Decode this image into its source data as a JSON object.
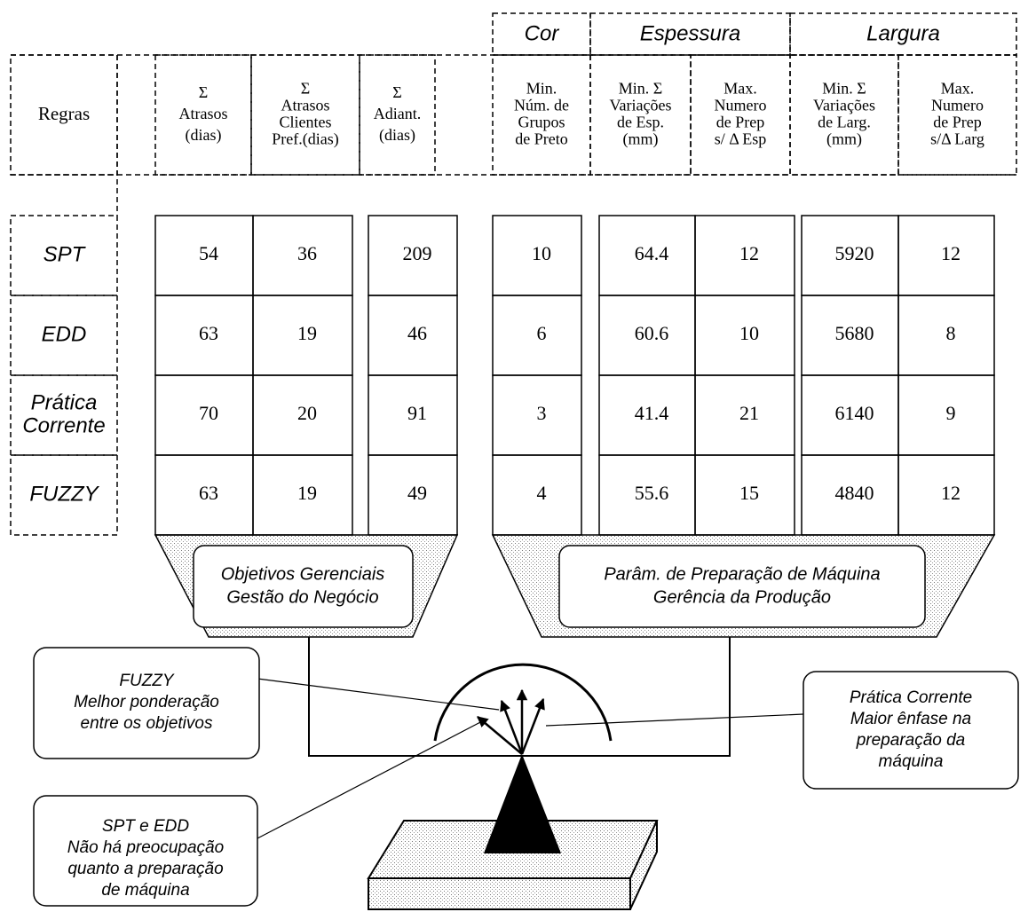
{
  "column_groups": [
    {
      "label": "Cor"
    },
    {
      "label": "Espessura"
    },
    {
      "label": "Largura"
    }
  ],
  "columns": [
    {
      "lines": [
        "Regras"
      ]
    },
    {
      "lines": [
        "Σ",
        "Atrasos",
        "(dias)"
      ]
    },
    {
      "lines": [
        "Σ",
        "Atrasos",
        "Clientes",
        "Pref.(dias)"
      ]
    },
    {
      "lines": [
        "Σ",
        "Adiant.",
        "(dias)"
      ]
    },
    {
      "lines": [
        "Min.",
        "Núm. de",
        "Grupos",
        "de Preto"
      ]
    },
    {
      "lines": [
        "Min. Σ",
        "Variações",
        "de Esp.",
        "(mm)"
      ]
    },
    {
      "lines": [
        "Max.",
        "Numero",
        "de Prep",
        "s/ Δ Esp"
      ]
    },
    {
      "lines": [
        "Min. Σ",
        "Variações",
        "de Larg.",
        "(mm)"
      ]
    },
    {
      "lines": [
        "Max.",
        "Numero",
        "de Prep",
        "s/Δ Larg"
      ]
    }
  ],
  "rows": [
    {
      "rule": [
        "SPT"
      ],
      "values": [
        54,
        36,
        209,
        10,
        64.4,
        12,
        5920,
        12
      ]
    },
    {
      "rule": [
        "EDD"
      ],
      "values": [
        63,
        19,
        46,
        6,
        60.6,
        10,
        5680,
        8
      ]
    },
    {
      "rule": [
        "Prática",
        "Corrente"
      ],
      "values": [
        70,
        20,
        91,
        3,
        41.4,
        21,
        6140,
        9
      ]
    },
    {
      "rule": [
        "FUZZY"
      ],
      "values": [
        63,
        19,
        49,
        4,
        55.6,
        15,
        4840,
        12
      ]
    }
  ],
  "groups": [
    {
      "lines": [
        "Objetivos Gerenciais",
        "Gestão do Negócio"
      ]
    },
    {
      "lines": [
        "Parâm. de Preparação de Máquina",
        "Gerência da Produção"
      ]
    }
  ],
  "callouts": [
    {
      "lines": [
        "FUZZY",
        "Melhor ponderação",
        "entre os objetivos"
      ]
    },
    {
      "lines": [
        "Prática Corrente",
        "Maior ênfase na",
        "preparação da",
        "máquina"
      ]
    },
    {
      "lines": [
        "SPT e EDD",
        "Não há preocupação",
        "quanto a preparação",
        "de máquina"
      ]
    }
  ]
}
